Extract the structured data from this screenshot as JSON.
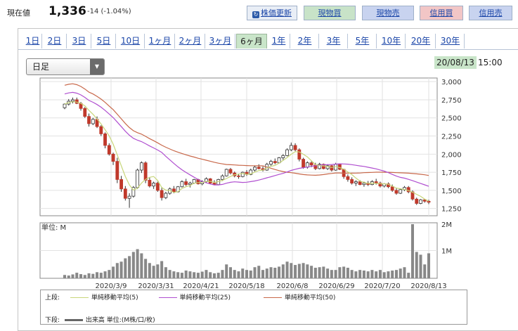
{
  "header": {
    "price_label": "現在値",
    "price_value": "1,336",
    "price_change": "-14 (-1.04%)",
    "buttons": {
      "update": "株価更新",
      "genbutsu_kai": "現物買",
      "genbutsu_uri": "現物売",
      "shinyo_kai": "信用買",
      "shinyo_uri": "信用売"
    }
  },
  "tabs": [
    "1日",
    "2日",
    "3日",
    "5日",
    "10日",
    "1ヶ月",
    "2ヶ月",
    "3ヶ月",
    "6ヶ月",
    "1年",
    "2年",
    "3年",
    "5年",
    "10年",
    "20年",
    "30年"
  ],
  "active_tab": "6ヶ月",
  "period_select": {
    "value": "日足"
  },
  "timestamp": {
    "date": "20/08/13",
    "time": "15:00"
  },
  "colors": {
    "up": "#ffffff",
    "down": "#c0392b",
    "ma5": "#c8d67a",
    "ma25": "#b04fd0",
    "ma50": "#c8684a",
    "volume": "#888888",
    "tab_active": "#c9e5c9"
  },
  "legend": {
    "upper_label": "上段:",
    "lower_label": "下段:",
    "ma5": "単純移動平均(5)",
    "ma25": "単純移動平均(25)",
    "ma50": "単純移動平均(50)",
    "volume": "出来高 単位:(M株/口/枚)"
  },
  "chart_data": {
    "type": "candlestick",
    "price_axis": {
      "ticks": [
        "3,000",
        "2,750",
        "2,500",
        "2,250",
        "2,000",
        "1,750",
        "1,500",
        "1,250"
      ],
      "range": [
        1150,
        3050
      ]
    },
    "volume_axis": {
      "unit_label": "単位: M",
      "ticks": [
        "2M",
        "1M"
      ],
      "range": [
        0,
        2
      ]
    },
    "x_labels": [
      "2020/3/9",
      "2020/3/31",
      "2020/4/21",
      "2020/5/18",
      "2020/6/8",
      "2020/6/29",
      "2020/7/20",
      "2020/8/13"
    ],
    "candles": [
      [
        2640,
        2700,
        2620,
        2690
      ],
      [
        2690,
        2760,
        2670,
        2730
      ],
      [
        2730,
        2780,
        2700,
        2750
      ],
      [
        2750,
        2780,
        2690,
        2700
      ],
      [
        2700,
        2720,
        2600,
        2630
      ],
      [
        2630,
        2650,
        2500,
        2520
      ],
      [
        2520,
        2560,
        2380,
        2420
      ],
      [
        2420,
        2500,
        2400,
        2480
      ],
      [
        2480,
        2520,
        2360,
        2380
      ],
      [
        2380,
        2400,
        2250,
        2280
      ],
      [
        2280,
        2300,
        2080,
        2120
      ],
      [
        2120,
        2150,
        1980,
        2000
      ],
      [
        2000,
        2020,
        1850,
        1900
      ],
      [
        1900,
        1950,
        1600,
        1650
      ],
      [
        1650,
        1700,
        1480,
        1520
      ],
      [
        1520,
        1560,
        1360,
        1390
      ],
      [
        1390,
        1460,
        1260,
        1420
      ],
      [
        1420,
        1560,
        1400,
        1540
      ],
      [
        1540,
        1800,
        1520,
        1780
      ],
      [
        1780,
        1900,
        1740,
        1880
      ],
      [
        1880,
        1900,
        1600,
        1640
      ],
      [
        1640,
        1680,
        1540,
        1560
      ],
      [
        1560,
        1620,
        1520,
        1600
      ],
      [
        1600,
        1620,
        1480,
        1500
      ],
      [
        1500,
        1540,
        1360,
        1400
      ],
      [
        1400,
        1480,
        1380,
        1460
      ],
      [
        1460,
        1540,
        1440,
        1520
      ],
      [
        1520,
        1560,
        1460,
        1480
      ],
      [
        1480,
        1560,
        1470,
        1550
      ],
      [
        1550,
        1640,
        1540,
        1620
      ],
      [
        1620,
        1660,
        1560,
        1580
      ],
      [
        1580,
        1620,
        1540,
        1600
      ],
      [
        1600,
        1660,
        1590,
        1650
      ],
      [
        1650,
        1660,
        1580,
        1590
      ],
      [
        1590,
        1640,
        1570,
        1620
      ],
      [
        1620,
        1680,
        1600,
        1660
      ],
      [
        1660,
        1670,
        1590,
        1600
      ],
      [
        1600,
        1640,
        1570,
        1580
      ],
      [
        1580,
        1660,
        1570,
        1650
      ],
      [
        1650,
        1720,
        1630,
        1700
      ],
      [
        1700,
        1800,
        1690,
        1790
      ],
      [
        1790,
        1810,
        1720,
        1740
      ],
      [
        1740,
        1760,
        1680,
        1700
      ],
      [
        1700,
        1730,
        1660,
        1690
      ],
      [
        1690,
        1760,
        1680,
        1750
      ],
      [
        1750,
        1780,
        1700,
        1720
      ],
      [
        1720,
        1800,
        1710,
        1780
      ],
      [
        1780,
        1840,
        1760,
        1820
      ],
      [
        1820,
        1860,
        1790,
        1800
      ],
      [
        1800,
        1830,
        1760,
        1780
      ],
      [
        1780,
        1880,
        1770,
        1860
      ],
      [
        1860,
        1920,
        1840,
        1900
      ],
      [
        1900,
        1940,
        1860,
        1880
      ],
      [
        1880,
        1960,
        1870,
        1950
      ],
      [
        1950,
        2000,
        1920,
        1980
      ],
      [
        1980,
        2080,
        1970,
        2060
      ],
      [
        2060,
        2160,
        2040,
        2120
      ],
      [
        2120,
        2150,
        2040,
        2060
      ],
      [
        2060,
        2080,
        1900,
        1930
      ],
      [
        1930,
        1950,
        1800,
        1820
      ],
      [
        1820,
        1900,
        1800,
        1880
      ],
      [
        1880,
        1900,
        1820,
        1850
      ],
      [
        1850,
        1880,
        1780,
        1800
      ],
      [
        1800,
        1880,
        1790,
        1860
      ],
      [
        1860,
        1870,
        1790,
        1800
      ],
      [
        1800,
        1860,
        1780,
        1840
      ],
      [
        1840,
        1850,
        1760,
        1780
      ],
      [
        1780,
        1880,
        1770,
        1860
      ],
      [
        1860,
        1870,
        1780,
        1790
      ],
      [
        1790,
        1800,
        1660,
        1690
      ],
      [
        1690,
        1720,
        1620,
        1650
      ],
      [
        1650,
        1680,
        1580,
        1600
      ],
      [
        1600,
        1640,
        1560,
        1620
      ],
      [
        1620,
        1640,
        1570,
        1580
      ],
      [
        1580,
        1620,
        1550,
        1600
      ],
      [
        1600,
        1630,
        1560,
        1580
      ],
      [
        1580,
        1640,
        1570,
        1620
      ],
      [
        1620,
        1660,
        1580,
        1600
      ],
      [
        1600,
        1620,
        1540,
        1560
      ],
      [
        1560,
        1600,
        1540,
        1590
      ],
      [
        1590,
        1610,
        1530,
        1550
      ],
      [
        1550,
        1580,
        1480,
        1500
      ],
      [
        1500,
        1530,
        1440,
        1460
      ],
      [
        1460,
        1520,
        1450,
        1510
      ],
      [
        1510,
        1560,
        1490,
        1540
      ],
      [
        1540,
        1560,
        1460,
        1480
      ],
      [
        1480,
        1500,
        1360,
        1380
      ],
      [
        1380,
        1400,
        1300,
        1320
      ],
      [
        1320,
        1380,
        1310,
        1370
      ],
      [
        1370,
        1380,
        1330,
        1350
      ],
      [
        1350,
        1370,
        1310,
        1336
      ]
    ],
    "volume": [
      0.12,
      0.1,
      0.14,
      0.2,
      0.15,
      0.12,
      0.18,
      0.16,
      0.22,
      0.2,
      0.25,
      0.3,
      0.42,
      0.55,
      0.6,
      0.72,
      0.8,
      0.95,
      1.05,
      0.9,
      0.7,
      0.55,
      0.45,
      0.5,
      0.62,
      0.4,
      0.3,
      0.25,
      0.22,
      0.2,
      0.28,
      0.25,
      0.22,
      0.2,
      0.24,
      0.3,
      0.22,
      0.18,
      0.2,
      0.3,
      0.5,
      0.4,
      0.3,
      0.25,
      0.35,
      0.3,
      0.28,
      0.4,
      0.45,
      0.3,
      0.35,
      0.4,
      0.38,
      0.42,
      0.5,
      0.6,
      0.55,
      0.48,
      0.52,
      0.55,
      0.5,
      0.45,
      0.38,
      0.4,
      0.42,
      0.35,
      0.3,
      0.3,
      0.4,
      0.42,
      0.38,
      0.3,
      0.25,
      0.3,
      0.28,
      0.25,
      0.3,
      0.25,
      0.3,
      0.22,
      0.25,
      0.28,
      0.3,
      0.35,
      0.4,
      0.2,
      1.95,
      0.95,
      0.85,
      0.5,
      0.9
    ],
    "moving_averages": [
      "単純移動平均(5)",
      "単純移動平均(25)",
      "単純移動平均(50)"
    ]
  }
}
